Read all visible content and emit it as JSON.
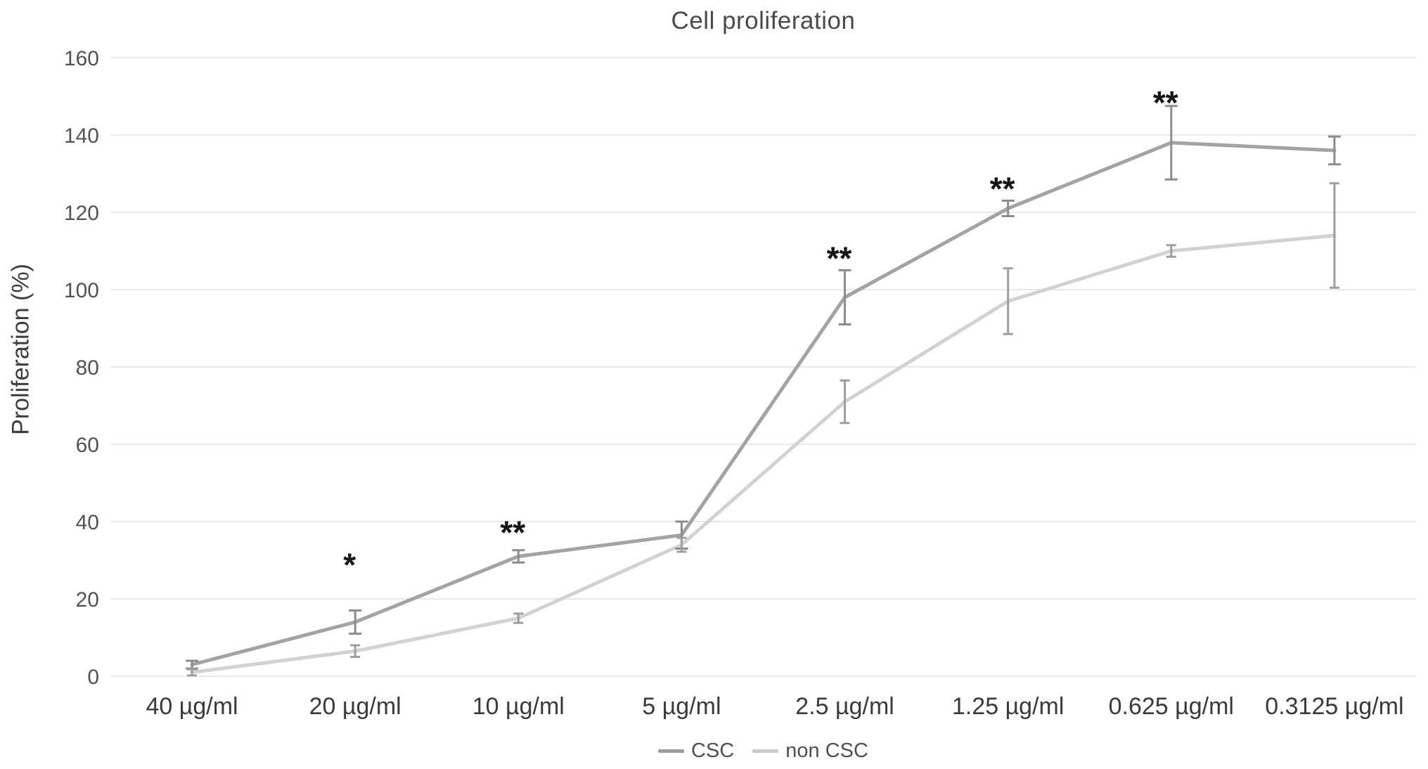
{
  "title": "Cell proliferation",
  "chart_data": {
    "type": "line",
    "title": "Cell proliferation",
    "ylabel": "Proliferation (%)",
    "xlabel": "",
    "categories": [
      "40 µg/ml",
      "20 µg/ml",
      "10 µg/ml",
      "5 µg/ml",
      "2.5 µg/ml",
      "1.25 µg/ml",
      "0.625 µg/ml",
      "0.3125 µg/ml"
    ],
    "y_ticks": [
      0,
      20,
      40,
      60,
      80,
      100,
      120,
      140,
      160
    ],
    "ylim": [
      0,
      160
    ],
    "grid": true,
    "legend_position": "bottom",
    "series": [
      {
        "name": "CSC",
        "color": "#a3a3a3",
        "error_color": "#8c8c8c",
        "values": [
          3,
          14,
          31,
          36.5,
          98,
          121,
          138,
          136
        ],
        "errors": [
          1,
          3,
          1.6,
          3.5,
          7,
          2,
          9.5,
          3.6
        ],
        "significance": [
          "",
          "*",
          "**",
          "",
          "**",
          "**",
          "**",
          ""
        ],
        "sig_raise": [
          0,
          60,
          20,
          0,
          12,
          12,
          0,
          0
        ]
      },
      {
        "name": "non CSC",
        "color": "#d2d2d2",
        "error_color": "#9e9e9e",
        "values": [
          1,
          6.5,
          15,
          34,
          71,
          97,
          110,
          114
        ],
        "errors": [
          0.8,
          1.5,
          1.2,
          1.8,
          5.5,
          8.5,
          1.5,
          13.5
        ],
        "significance": [
          "",
          "",
          "",
          "",
          "",
          "",
          "",
          ""
        ],
        "sig_raise": [
          0,
          0,
          0,
          0,
          0,
          0,
          0,
          0
        ]
      }
    ],
    "annotation_color": "#161616",
    "grid_color": "#e9e9e9",
    "tick_label_color": "#525252",
    "x_label_color": "#3a3a3a"
  }
}
